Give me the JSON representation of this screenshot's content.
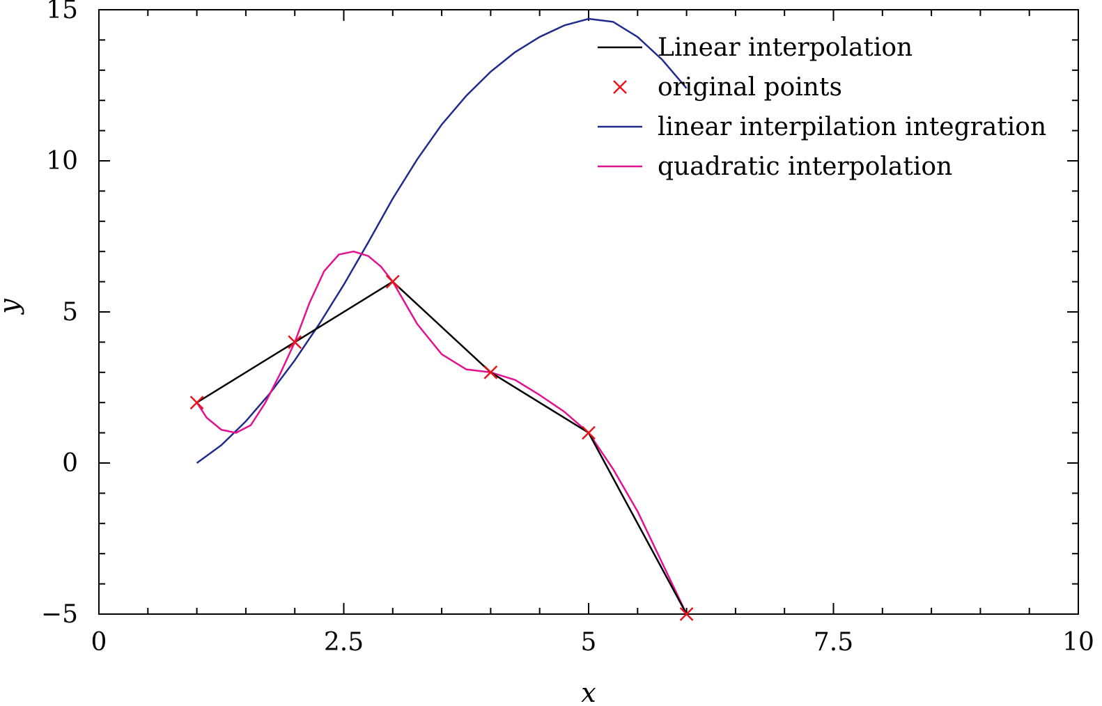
{
  "chart_data": {
    "type": "line",
    "title": "",
    "xlabel": "x",
    "ylabel": "y",
    "xlim": [
      0,
      10
    ],
    "ylim": [
      -5,
      15
    ],
    "x_ticks": [
      {
        "value": 0,
        "label": "0"
      },
      {
        "value": 2.5,
        "label": "2.5"
      },
      {
        "value": 5,
        "label": "5"
      },
      {
        "value": 7.5,
        "label": "7.5"
      },
      {
        "value": 10,
        "label": "10"
      }
    ],
    "y_ticks": [
      {
        "value": -5,
        "label": "−5"
      },
      {
        "value": 0,
        "label": "0"
      },
      {
        "value": 5,
        "label": "5"
      },
      {
        "value": 10,
        "label": "10"
      },
      {
        "value": 15,
        "label": "15"
      }
    ],
    "grid": false,
    "legend_position": "top-right",
    "series": [
      {
        "name": "Linear interpolation",
        "style": "line",
        "color": "#000000",
        "x": [
          1,
          2,
          3,
          4,
          5,
          6
        ],
        "y": [
          2,
          4,
          6,
          3,
          1,
          -5
        ]
      },
      {
        "name": "original points",
        "style": "marker-x",
        "color": "#e8141c",
        "x": [
          1,
          2,
          3,
          4,
          5,
          6
        ],
        "y": [
          2,
          4,
          6,
          3,
          1,
          -5
        ]
      },
      {
        "name": "linear interpilation integration",
        "style": "line",
        "color": "#1f2a8c",
        "x": [
          1,
          1.25,
          1.5,
          1.75,
          2,
          2.25,
          2.5,
          2.75,
          3,
          3.25,
          3.5,
          3.75,
          4,
          4.25,
          4.5,
          4.75,
          5,
          5.25,
          5.5,
          5.75,
          6
        ],
        "y": [
          0,
          0.59,
          1.38,
          2.32,
          3.4,
          4.6,
          5.9,
          7.3,
          8.75,
          10.05,
          11.2,
          12.15,
          12.95,
          13.6,
          14.1,
          14.48,
          14.7,
          14.6,
          14.1,
          13.35,
          12.4
        ]
      },
      {
        "name": "quadratic interpolation",
        "style": "line",
        "color": "#e3118f",
        "x": [
          1,
          1.1,
          1.25,
          1.4,
          1.55,
          1.7,
          1.85,
          2,
          2.15,
          2.3,
          2.45,
          2.6,
          2.75,
          2.88,
          3,
          3.25,
          3.5,
          3.75,
          4,
          4.25,
          4.5,
          4.75,
          5,
          5.25,
          5.5,
          5.75,
          6
        ],
        "y": [
          2,
          1.5,
          1.1,
          1.0,
          1.25,
          2.0,
          2.95,
          4.0,
          5.3,
          6.35,
          6.9,
          7.0,
          6.85,
          6.5,
          6.0,
          4.6,
          3.6,
          3.1,
          3.0,
          2.75,
          2.25,
          1.7,
          1.0,
          -0.2,
          -1.6,
          -3.3,
          -5.0
        ]
      }
    ]
  }
}
